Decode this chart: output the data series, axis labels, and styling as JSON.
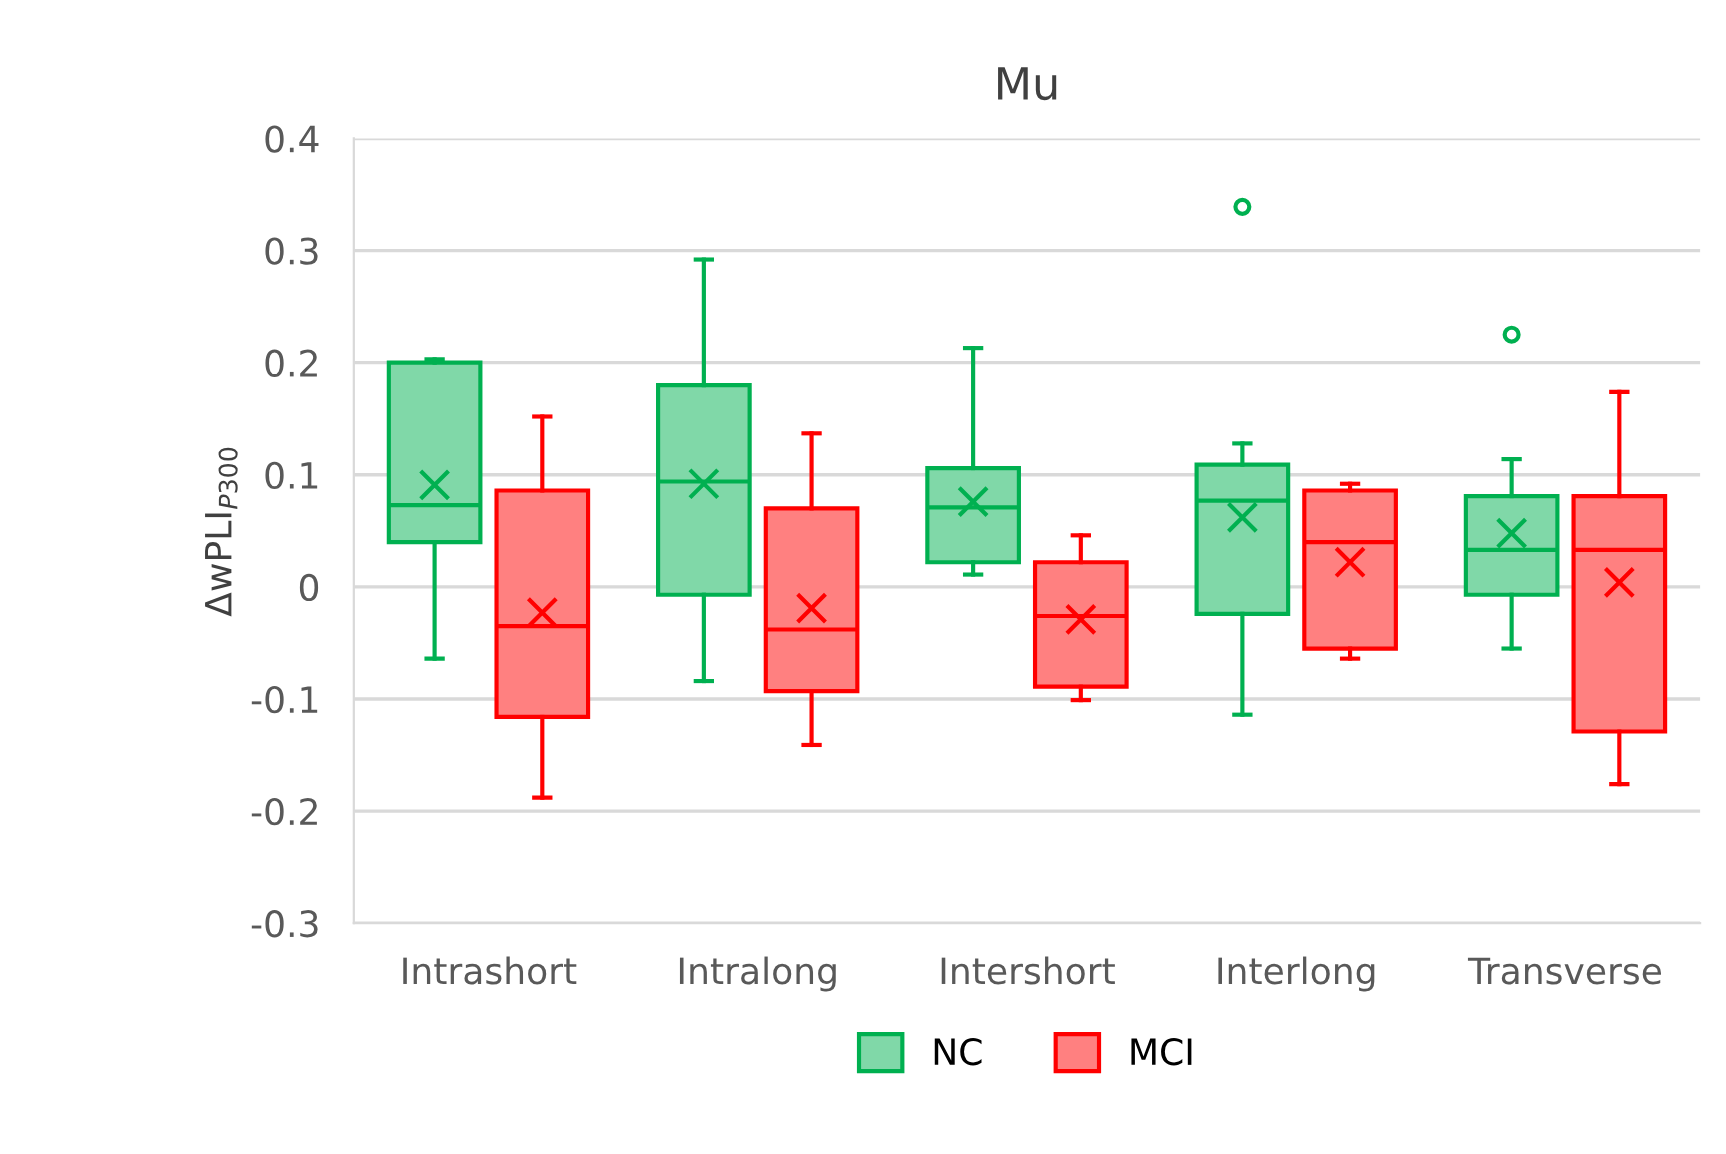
{
  "chart_data": {
    "type": "box",
    "title": "Mu",
    "ylabel": "ΔwPLI$_{P300}$",
    "categories": [
      "Intrashort",
      "Intralong",
      "Intershort",
      "Interlong",
      "Transverse"
    ],
    "series": [
      {
        "name": "NC",
        "color": "#00b050",
        "boxes": [
          {
            "low": -0.064,
            "q1": 0.04,
            "median": 0.073,
            "q3": 0.2,
            "high": 0.203,
            "mean": 0.091
          },
          {
            "low": -0.084,
            "q1": -0.007,
            "median": 0.094,
            "q3": 0.18,
            "high": 0.292,
            "mean": 0.092
          },
          {
            "low": 0.011,
            "q1": 0.022,
            "median": 0.071,
            "q3": 0.106,
            "high": 0.213,
            "mean": 0.076
          },
          {
            "low": -0.114,
            "q1": -0.024,
            "median": 0.077,
            "q3": 0.109,
            "high": 0.128,
            "mean": 0.062,
            "outliers": [
              0.339
            ]
          },
          {
            "low": -0.055,
            "q1": -0.007,
            "median": 0.033,
            "q3": 0.081,
            "high": 0.114,
            "mean": 0.048,
            "outliers": [
              0.225
            ]
          }
        ]
      },
      {
        "name": "MCI",
        "color": "#ff0000",
        "boxes": [
          {
            "low": -0.188,
            "q1": -0.116,
            "median": -0.035,
            "q3": 0.086,
            "high": 0.152,
            "mean": -0.023
          },
          {
            "low": -0.141,
            "q1": -0.093,
            "median": -0.038,
            "q3": 0.07,
            "high": 0.137,
            "mean": -0.019
          },
          {
            "low": -0.101,
            "q1": -0.089,
            "median": -0.026,
            "q3": 0.022,
            "high": 0.046,
            "mean": -0.029
          },
          {
            "low": -0.064,
            "q1": -0.055,
            "median": 0.04,
            "q3": 0.086,
            "high": 0.092,
            "mean": 0.022
          },
          {
            "low": -0.176,
            "q1": -0.129,
            "median": 0.033,
            "q3": 0.081,
            "high": 0.174,
            "mean": 0.004
          }
        ]
      }
    ],
    "ylim": [
      -0.3,
      0.4
    ],
    "yticks": [
      -0.3,
      -0.2,
      -0.1,
      0,
      0.1,
      0.2,
      0.3,
      0.4
    ],
    "grid": "y",
    "legend": "bottom",
    "marker": "cross"
  }
}
